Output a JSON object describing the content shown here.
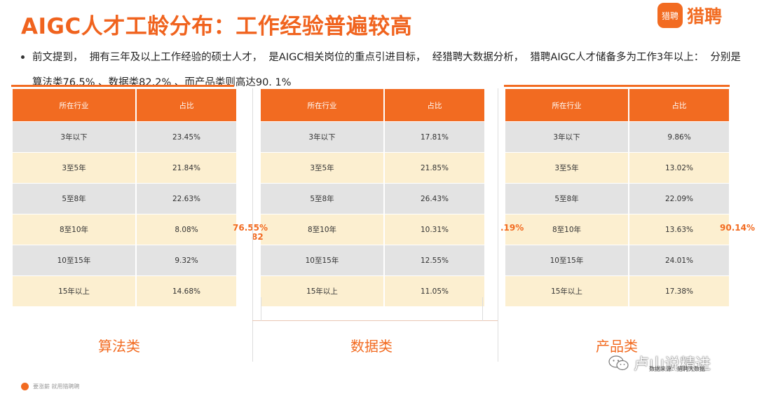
{
  "header": {
    "title": "AIGC人才工龄分布：工作经验普遍较高",
    "logo_mark": "猎聘",
    "logo_text": "猎聘"
  },
  "bullet": {
    "text": "前文提到，  拥有三年及以上工作经验的硕士人才，  是AIGC相关岗位的重点引进目标，  经猎聘大数据分析，  猎聘AIGC人才储备多为工作3年以上：  分别是算法类76.5% 、数据类82.2% 、而产品类则高达90. 1%"
  },
  "table_headers": {
    "industry": "所在行业",
    "ratio": "占比"
  },
  "tables": [
    {
      "category": "算法类",
      "rows": [
        {
          "label": "3年以下",
          "value": "23.45%"
        },
        {
          "label": "3至5年",
          "value": "21.84%"
        },
        {
          "label": "5至8年",
          "value": "22.63%"
        },
        {
          "label": "8至10年",
          "value": "8.08%"
        },
        {
          "label": "10至15年",
          "value": "9.32%"
        },
        {
          "label": "15年以上",
          "value": "14.68%"
        }
      ]
    },
    {
      "category": "数据类",
      "rows": [
        {
          "label": "3年以下",
          "value": "17.81%"
        },
        {
          "label": "3至5年",
          "value": "21.85%"
        },
        {
          "label": "5至8年",
          "value": "26.43%"
        },
        {
          "label": "8至10年",
          "value": "10.31%"
        },
        {
          "label": "10至15年",
          "value": "12.55%"
        },
        {
          "label": "15年以上",
          "value": "11.05%"
        }
      ]
    },
    {
      "category": "产品类",
      "rows": [
        {
          "label": "3年以下",
          "value": "9.86%"
        },
        {
          "label": "3至5年",
          "value": "13.02%"
        },
        {
          "label": "5至8年",
          "value": "22.09%"
        },
        {
          "label": "8至10年",
          "value": "13.63%"
        },
        {
          "label": "10至15年",
          "value": "24.01%"
        },
        {
          "label": "15年以上",
          "value": "17.38%"
        }
      ]
    }
  ],
  "side_labels": {
    "algo_line1": "76.55%",
    "algo_line2": "82",
    "data": ".19%",
    "product": "90.14%"
  },
  "watermark": "卢山说精进",
  "source": "数据来源：猎聘大数据",
  "footer": "要涨薪  就用猎聘聘",
  "colors": {
    "accent": "#f26b21",
    "row_gray": "#e3e3e3",
    "row_cream": "#fcefd0"
  }
}
